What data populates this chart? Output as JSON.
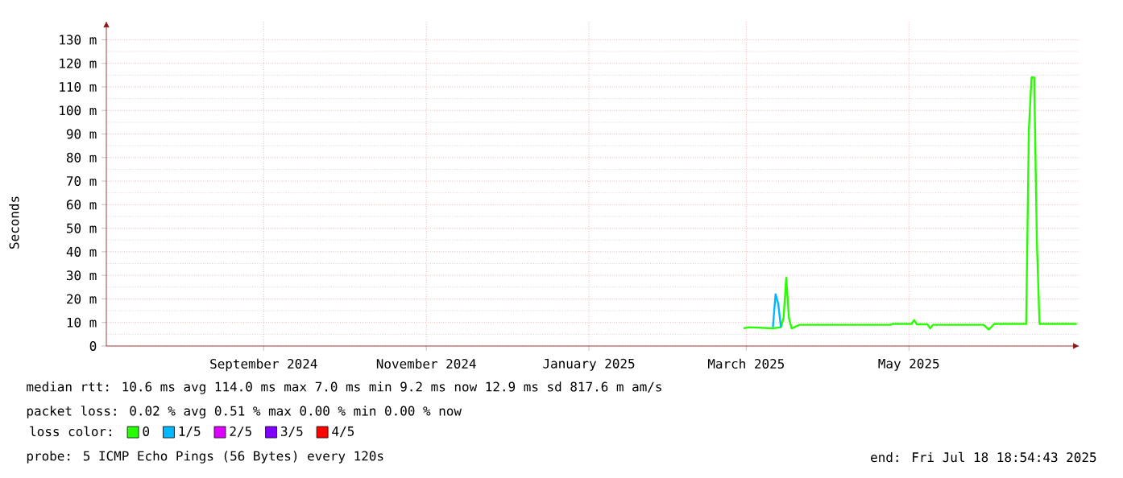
{
  "chart_data": {
    "type": "line",
    "ylabel": "Seconds",
    "xlim": [
      "2024-07-18",
      "2025-07-18"
    ],
    "xticks": [
      {
        "value": "2024-09-15",
        "label": "September 2024"
      },
      {
        "value": "2024-11-15",
        "label": "November 2024"
      },
      {
        "value": "2025-01-15",
        "label": "January 2025"
      },
      {
        "value": "2025-03-15",
        "label": "March 2025"
      },
      {
        "value": "2025-05-15",
        "label": "May 2025"
      }
    ],
    "ylim": [
      0,
      138
    ],
    "yticks": [
      {
        "value": 0,
        "label": "0"
      },
      {
        "value": 10,
        "label": "10 m"
      },
      {
        "value": 20,
        "label": "20 m"
      },
      {
        "value": 30,
        "label": "30 m"
      },
      {
        "value": 40,
        "label": "40 m"
      },
      {
        "value": 50,
        "label": "50 m"
      },
      {
        "value": 60,
        "label": "60 m"
      },
      {
        "value": 70,
        "label": "70 m"
      },
      {
        "value": 80,
        "label": "80 m"
      },
      {
        "value": 90,
        "label": "90 m"
      },
      {
        "value": 100,
        "label": "100 m"
      },
      {
        "value": 110,
        "label": "110 m"
      },
      {
        "value": 120,
        "label": "120 m"
      },
      {
        "value": 130,
        "label": "130 m"
      }
    ],
    "series": [
      {
        "name": "0",
        "color": "#26ff00",
        "x": [
          "2025-03-14",
          "2025-03-16",
          "2025-03-25",
          "2025-03-28",
          "2025-03-29",
          "2025-03-30",
          "2025-03-31",
          "2025-04-01",
          "2025-04-04",
          "2025-05-08",
          "2025-05-09",
          "2025-05-16",
          "2025-05-17",
          "2025-05-18",
          "2025-05-22",
          "2025-05-23",
          "2025-05-24",
          "2025-06-12",
          "2025-06-14",
          "2025-06-16",
          "2025-06-28",
          "2025-06-29",
          "2025-06-30",
          "2025-07-01",
          "2025-07-02",
          "2025-07-03",
          "2025-07-17"
        ],
        "values": [
          7.5,
          8,
          7.5,
          8,
          12,
          29,
          12,
          7.5,
          9,
          9,
          9.4,
          9.4,
          11,
          9.2,
          9.2,
          7.5,
          9,
          9,
          7,
          9.4,
          9.4,
          92,
          114,
          114,
          44.5,
          9.4,
          9.4
        ]
      },
      {
        "name": "1/5",
        "color": "#00b8ff",
        "x": [
          "2025-03-25",
          "2025-03-26",
          "2025-03-27",
          "2025-03-28"
        ],
        "values": [
          8,
          22,
          18,
          8
        ]
      },
      {
        "name": "2/5",
        "color": "#dd00ff"
      },
      {
        "name": "3/5",
        "color": "#7e00ff"
      },
      {
        "name": "4/5",
        "color": "#ff0000"
      }
    ],
    "legend": "bottom",
    "legend_title": "loss color:",
    "grid": true,
    "line_style": "solid",
    "annotations": [
      "median rtt: 10.6 ms avg 114.0 ms max 7.0 ms min 9.2 ms now 12.9 ms sd 817.6 m am/s",
      "packet loss: 0.02 % avg 0.51 % max 0.00 % min 0.00 % now",
      "probe: 5 ICMP Echo Pings (56 Bytes) every 120s",
      "end: Fri Jul 18 18:54:43 2025"
    ]
  }
}
